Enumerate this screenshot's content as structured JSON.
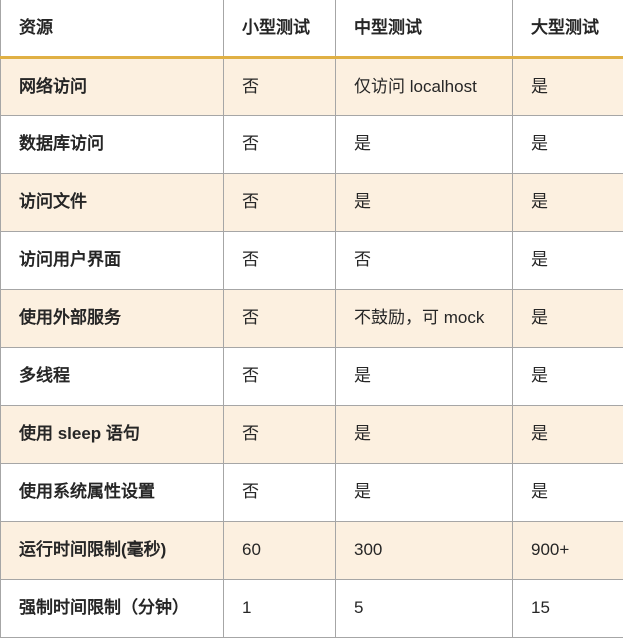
{
  "table": {
    "header": [
      "资源",
      "小型测试",
      "中型测试",
      "大型测试"
    ],
    "rows": [
      [
        "网络访问",
        "否",
        "仅访问 localhost",
        "是"
      ],
      [
        "数据库访问",
        "否",
        "是",
        "是"
      ],
      [
        "访问文件",
        "否",
        "是",
        "是"
      ],
      [
        "访问用户界面",
        "否",
        "否",
        "是"
      ],
      [
        "使用外部服务",
        "否",
        "不鼓励，可 mock",
        "是"
      ],
      [
        "多线程",
        "否",
        "是",
        "是"
      ],
      [
        "使用 sleep 语句",
        "否",
        "是",
        "是"
      ],
      [
        "使用系统属性设置",
        "否",
        "是",
        "是"
      ],
      [
        "运行时间限制(毫秒)",
        "60",
        "300",
        "900+"
      ],
      [
        "强制时间限制（分钟）",
        "1",
        "5",
        "15"
      ]
    ]
  },
  "colors": {
    "row_highlight": "#fcf0e0",
    "header_rule": "#e0b044",
    "grid_line": "#a6a6a6",
    "text": "#262626"
  }
}
